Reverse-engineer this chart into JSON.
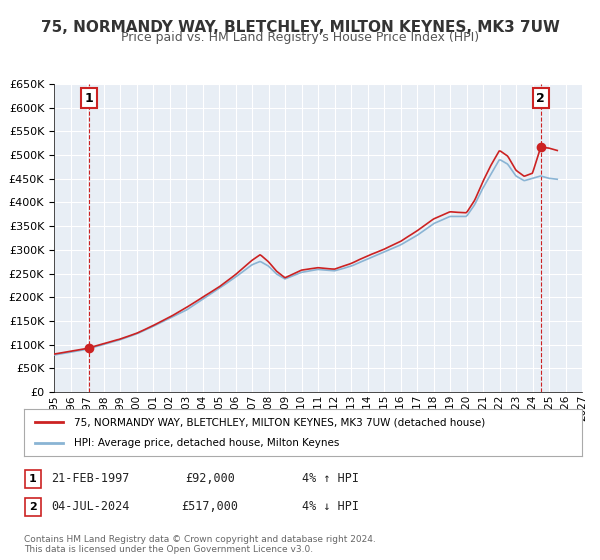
{
  "title": "75, NORMANDY WAY, BLETCHLEY, MILTON KEYNES, MK3 7UW",
  "subtitle": "Price paid vs. HM Land Registry's House Price Index (HPI)",
  "hpi_label": "HPI: Average price, detached house, Milton Keynes",
  "price_label": "75, NORMANDY WAY, BLETCHLEY, MILTON KEYNES, MK3 7UW (detached house)",
  "transaction1_date": "21-FEB-1997",
  "transaction1_price": "£92,000",
  "transaction1_hpi": "4% ↑ HPI",
  "transaction2_date": "04-JUL-2024",
  "transaction2_price": "£517,000",
  "transaction2_hpi": "4% ↓ HPI",
  "point1_x": 1997.13,
  "point1_y": 92000,
  "point2_x": 2024.5,
  "point2_y": 517000,
  "vline1_x": 1997.13,
  "vline2_x": 2024.5,
  "xmin": 1995,
  "xmax": 2027,
  "ymin": 0,
  "ymax": 650000,
  "price_color": "#cc2222",
  "hpi_color": "#8ab4d4",
  "bg_color": "#e8eef5",
  "grid_color": "#ffffff",
  "footer": "Contains HM Land Registry data © Crown copyright and database right 2024.\nThis data is licensed under the Open Government Licence v3.0.",
  "yticks": [
    0,
    50000,
    100000,
    150000,
    200000,
    250000,
    300000,
    350000,
    400000,
    450000,
    500000,
    550000,
    600000,
    650000
  ],
  "xticks": [
    1995,
    1996,
    1997,
    1998,
    1999,
    2000,
    2001,
    2002,
    2003,
    2004,
    2005,
    2006,
    2007,
    2008,
    2009,
    2010,
    2011,
    2012,
    2013,
    2014,
    2015,
    2016,
    2017,
    2018,
    2019,
    2020,
    2021,
    2022,
    2023,
    2024,
    2025,
    2026,
    2027
  ]
}
